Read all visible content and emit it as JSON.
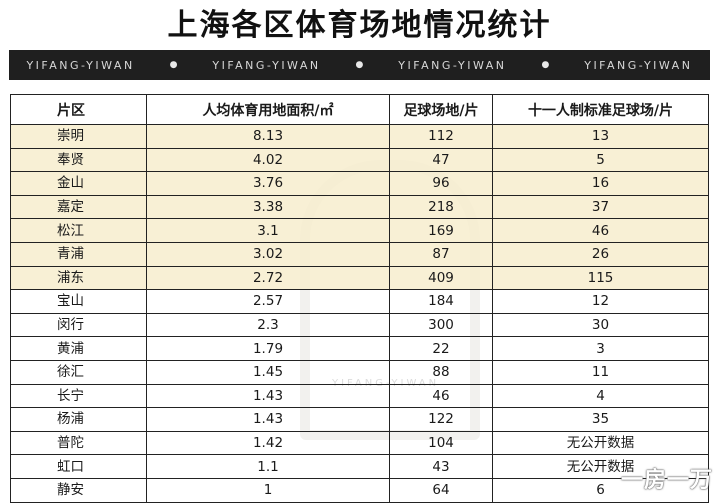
{
  "title": "上海各区体育场地情况统计",
  "banner": [
    "YIFANG-YIWAN",
    "YIFANG-YIWAN",
    "YIFANG-YIWAN",
    "YIFANG-YIWAN"
  ],
  "banner_separator": "●",
  "watermark_text": "YIFANG-YIWAN",
  "corner_mark": "一房一万",
  "highlight_color": "#f7edce",
  "table": {
    "headers": [
      "片区",
      "人均体育用地面积/㎡",
      "足球场地/片",
      "十一人制标准足球场/片"
    ],
    "rows": [
      {
        "district": "崇明",
        "area": "8.13",
        "football": "112",
        "standard": "13",
        "highlight": true
      },
      {
        "district": "奉贤",
        "area": "4.02",
        "football": "47",
        "standard": "5",
        "highlight": true
      },
      {
        "district": "金山",
        "area": "3.76",
        "football": "96",
        "standard": "16",
        "highlight": true
      },
      {
        "district": "嘉定",
        "area": "3.38",
        "football": "218",
        "standard": "37",
        "highlight": true
      },
      {
        "district": "松江",
        "area": "3.1",
        "football": "169",
        "standard": "46",
        "highlight": true
      },
      {
        "district": "青浦",
        "area": "3.02",
        "football": "87",
        "standard": "26",
        "highlight": true
      },
      {
        "district": "浦东",
        "area": "2.72",
        "football": "409",
        "standard": "115",
        "highlight": true
      },
      {
        "district": "宝山",
        "area": "2.57",
        "football": "184",
        "standard": "12",
        "highlight": false
      },
      {
        "district": "闵行",
        "area": "2.3",
        "football": "300",
        "standard": "30",
        "highlight": false
      },
      {
        "district": "黄浦",
        "area": "1.79",
        "football": "22",
        "standard": "3",
        "highlight": false
      },
      {
        "district": "徐汇",
        "area": "1.45",
        "football": "88",
        "standard": "11",
        "highlight": false
      },
      {
        "district": "长宁",
        "area": "1.43",
        "football": "46",
        "standard": "4",
        "highlight": false
      },
      {
        "district": "杨浦",
        "area": "1.43",
        "football": "122",
        "standard": "35",
        "highlight": false
      },
      {
        "district": "普陀",
        "area": "1.42",
        "football": "104",
        "standard": "无公开数据",
        "highlight": false
      },
      {
        "district": "虹口",
        "area": "1.1",
        "football": "43",
        "standard": "无公开数据",
        "highlight": false
      },
      {
        "district": "静安",
        "area": "1",
        "football": "64",
        "standard": "6",
        "highlight": false
      }
    ]
  }
}
